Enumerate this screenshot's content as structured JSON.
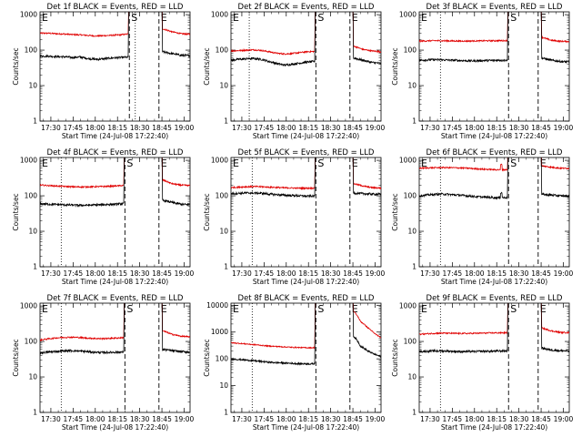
{
  "chart_data": {
    "type": "line",
    "x_tick_labels": [
      "17:30",
      "17:45",
      "18:00",
      "18:15",
      "18:30",
      "18:45",
      "19:00"
    ],
    "x_tick_minutes": [
      30,
      45,
      60,
      75,
      90,
      105,
      120
    ],
    "x_range_minutes": [
      22.67,
      124
    ],
    "x_minutes_base": "17:00",
    "xlabel": "Start Time (24-Jul-08 17:22:40)",
    "ylabel": "Counts/sec",
    "y_scale": "log",
    "series_colors": {
      "events": "#000000",
      "lld": "#e00000"
    },
    "markers": {
      "start": "E",
      "saa_in": "S",
      "saa_out": "E"
    },
    "panels": [
      {
        "title": "Det 1f BLACK = Events, RED = LLD",
        "y_tick_labels": [
          "1",
          "10",
          "100",
          "1000"
        ],
        "ylim": [
          1,
          1200
        ],
        "events_level": [
          68,
          68,
          66,
          65,
          62,
          64,
          58,
          55,
          57,
          60,
          62,
          63
        ],
        "lld_level": [
          300,
          300,
          290,
          285,
          275,
          270,
          260,
          250,
          255,
          262,
          270,
          285
        ],
        "saa_in": 83,
        "saa_out": 103,
        "dotted": 87,
        "post_events": [
          90,
          80,
          72,
          70
        ],
        "post_lld": [
          400,
          330,
          290,
          280
        ]
      },
      {
        "title": "Det 2f BLACK = Events, RED = LLD",
        "y_tick_labels": [
          "1",
          "10",
          "100",
          "1000"
        ],
        "ylim": [
          1,
          1200
        ],
        "events_level": [
          52,
          55,
          57,
          58,
          55,
          48,
          42,
          38,
          40,
          43,
          46,
          48
        ],
        "lld_level": [
          95,
          97,
          100,
          102,
          98,
          90,
          82,
          78,
          80,
          85,
          90,
          92
        ],
        "saa_in": 80,
        "saa_out": 103,
        "dotted": 35,
        "post_events": [
          60,
          52,
          45,
          42
        ],
        "post_lld": [
          130,
          105,
          95,
          90
        ]
      },
      {
        "title": "Det 3f BLACK = Events, RED = LLD",
        "y_tick_labels": [
          "1",
          "10",
          "100",
          "1000"
        ],
        "ylim": [
          1,
          1200
        ],
        "events_level": [
          52,
          53,
          54,
          53,
          52,
          51,
          50,
          50,
          51,
          51,
          52,
          52
        ],
        "lld_level": [
          180,
          182,
          185,
          183,
          182,
          180,
          180,
          182,
          183,
          184,
          185,
          185
        ],
        "saa_in": 83,
        "saa_out": 103,
        "dotted": 37,
        "post_events": [
          60,
          52,
          48,
          46
        ],
        "post_lld": [
          230,
          190,
          178,
          175
        ]
      },
      {
        "title": "Det 4f BLACK = Events, RED = LLD",
        "y_tick_labels": [
          "1",
          "10",
          "100",
          "1000"
        ],
        "ylim": [
          1,
          1200
        ],
        "events_level": [
          60,
          58,
          57,
          56,
          55,
          54,
          54,
          55,
          56,
          57,
          58,
          60
        ],
        "lld_level": [
          200,
          195,
          190,
          185,
          180,
          178,
          178,
          180,
          182,
          185,
          190,
          195
        ],
        "saa_in": 80,
        "saa_out": 103,
        "dotted": 37,
        "post_events": [
          75,
          65,
          58,
          56
        ],
        "post_lld": [
          280,
          220,
          200,
          195
        ]
      },
      {
        "title": "Det 5f BLACK = Events, RED = LLD",
        "y_tick_labels": [
          "1",
          "10",
          "100",
          "1000"
        ],
        "ylim": [
          1,
          1200
        ],
        "events_level": [
          115,
          118,
          120,
          120,
          118,
          112,
          108,
          104,
          102,
          100,
          98,
          98
        ],
        "lld_level": [
          170,
          175,
          180,
          182,
          180,
          175,
          172,
          168,
          166,
          164,
          163,
          165
        ],
        "saa_in": 80,
        "saa_out": 103,
        "dotted": 37,
        "post_events": [
          120,
          115,
          112,
          110
        ],
        "post_lld": [
          220,
          190,
          170,
          165
        ]
      },
      {
        "title": "Det 6f BLACK = Events, RED = LLD",
        "y_tick_labels": [
          "1",
          "10",
          "100",
          "1000"
        ],
        "ylim": [
          1,
          1200
        ],
        "events_level": [
          100,
          105,
          110,
          112,
          108,
          104,
          100,
          95,
          92,
          90,
          88,
          90
        ],
        "lld_level": [
          600,
          610,
          620,
          625,
          620,
          610,
          600,
          580,
          560,
          550,
          540,
          545
        ],
        "saa_in": 83,
        "saa_out": 103,
        "dotted": 37,
        "post_events": [
          110,
          105,
          100,
          98
        ],
        "post_lld": [
          700,
          640,
          600,
          590
        ]
      },
      {
        "title": "Det 7f BLACK = Events, RED = LLD",
        "y_tick_labels": [
          "1",
          "10",
          "100",
          "1000"
        ],
        "ylim": [
          1,
          1200
        ],
        "events_level": [
          48,
          50,
          52,
          54,
          55,
          54,
          52,
          50,
          49,
          49,
          50,
          50
        ],
        "lld_level": [
          110,
          118,
          125,
          130,
          132,
          130,
          125,
          122,
          120,
          122,
          125,
          128
        ],
        "saa_in": 80,
        "saa_out": 103,
        "dotted": 37,
        "post_events": [
          60,
          55,
          52,
          50
        ],
        "post_lld": [
          200,
          160,
          140,
          135
        ]
      },
      {
        "title": "Det 8f BLACK = Events, RED = LLD",
        "y_tick_labels": [
          "1",
          "10",
          "100",
          "1000",
          "10000"
        ],
        "ylim": [
          1,
          12000
        ],
        "events_level": [
          100,
          95,
          90,
          85,
          80,
          75,
          72,
          70,
          68,
          66,
          65,
          65
        ],
        "lld_level": [
          400,
          380,
          360,
          340,
          320,
          300,
          290,
          280,
          270,
          265,
          260,
          260
        ],
        "saa_in": 80,
        "saa_out": 103,
        "dotted": 37,
        "post_events": [
          700,
          300,
          200,
          150,
          120
        ],
        "post_lld": [
          6000,
          2500,
          1500,
          900,
          600
        ]
      },
      {
        "title": "Det 9f BLACK = Events, RED = LLD",
        "y_tick_labels": [
          "1",
          "10",
          "100",
          "1000"
        ],
        "ylim": [
          1,
          1200
        ],
        "events_level": [
          52,
          53,
          54,
          54,
          53,
          52,
          52,
          52,
          53,
          53,
          54,
          54
        ],
        "lld_level": [
          160,
          165,
          170,
          172,
          170,
          168,
          168,
          170,
          172,
          174,
          175,
          176
        ],
        "saa_in": 83,
        "saa_out": 103,
        "dotted": 37,
        "post_events": [
          65,
          58,
          55,
          54
        ],
        "post_lld": [
          240,
          200,
          180,
          178
        ]
      }
    ]
  }
}
